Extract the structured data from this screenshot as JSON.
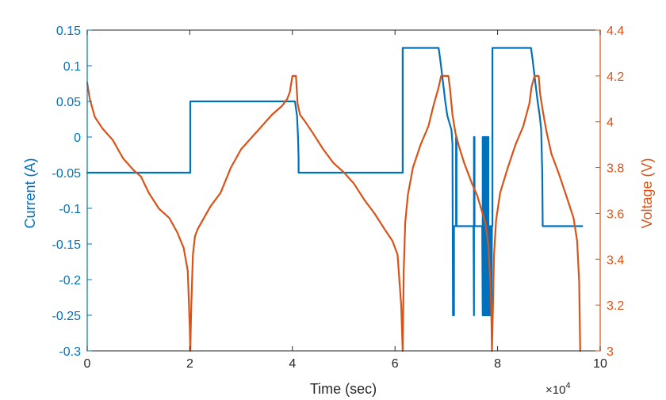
{
  "chart_data": {
    "type": "line",
    "title": "",
    "xlabel": "Time (sec)",
    "x_exponent_label": "×10",
    "x_exponent_power": "4",
    "ylabel_left": "Current (A)",
    "ylabel_right": "Voltage (V)",
    "xlim": [
      0,
      100000
    ],
    "ylim_left": [
      -0.3,
      0.15
    ],
    "ylim_right": [
      3.0,
      4.4
    ],
    "x_ticks": [
      0,
      20000,
      40000,
      60000,
      80000,
      100000
    ],
    "x_tick_labels": [
      "0",
      "2",
      "4",
      "6",
      "8",
      "10"
    ],
    "y_left_ticks": [
      0.15,
      0.1,
      0.05,
      0,
      -0.05,
      -0.1,
      -0.15,
      -0.2,
      -0.25,
      -0.3
    ],
    "y_left_tick_labels": [
      "0.15",
      "0.1",
      "0.05",
      "0",
      "-0.05",
      "-0.1",
      "-0.15",
      "-0.2",
      "-0.25",
      "-0.3"
    ],
    "y_right_ticks": [
      4.4,
      4.2,
      4.0,
      3.8,
      3.6,
      3.4,
      3.2,
      3.0
    ],
    "y_right_tick_labels": [
      "4.4",
      "4.2",
      "4",
      "3.8",
      "3.6",
      "3.4",
      "3.2",
      "3"
    ],
    "grid": false,
    "colors": {
      "current": "#0072BD",
      "voltage": "#D95319",
      "axes": "#262626"
    },
    "series": [
      {
        "axis": "left",
        "x": [
          0,
          20100,
          20100,
          40500,
          40700,
          40900,
          41100,
          41200,
          41200,
          61500,
          61500,
          68500,
          68800,
          69300,
          69800,
          70200,
          70600,
          71000,
          71200,
          71300,
          71300,
          71400,
          71400,
          71500,
          71500,
          71800,
          71900,
          71900,
          72000,
          72000,
          75300,
          75400,
          75400,
          75500,
          75500,
          77000,
          77100,
          77100,
          77200,
          77200,
          77300,
          77300,
          77400,
          77400,
          77500,
          77500,
          77600,
          77600,
          77700,
          77700,
          77800,
          77800,
          77900,
          77900,
          78000,
          78000,
          78100,
          78100,
          78200,
          78200,
          78300,
          78300,
          78400,
          78400,
          78500,
          78500,
          78600,
          78600,
          78700,
          78700,
          78800,
          78800,
          78900,
          78900,
          79000,
          79000,
          86500,
          86800,
          87300,
          87800,
          88200,
          88500,
          88700,
          88800,
          96500
        ],
        "y": [
          -0.05,
          -0.05,
          0.05,
          0.05,
          0.04,
          0.03,
          0.0,
          -0.03,
          -0.05,
          -0.05,
          0.125,
          0.125,
          0.11,
          0.08,
          0.05,
          0.03,
          0.02,
          0.01,
          -0.01,
          -0.25,
          -0.125,
          -0.125,
          -0.25,
          -0.25,
          -0.125,
          -0.125,
          -0.125,
          0.0,
          0.0,
          -0.125,
          -0.125,
          -0.25,
          0.0,
          0.0,
          -0.125,
          -0.125,
          -0.25,
          0.0,
          0.0,
          -0.25,
          -0.25,
          0.0,
          0.0,
          -0.25,
          -0.25,
          0.0,
          0.0,
          -0.25,
          -0.25,
          0.0,
          0.0,
          -0.25,
          -0.25,
          0.0,
          0.0,
          -0.25,
          -0.25,
          0.0,
          0.0,
          -0.25,
          -0.25,
          -0.125,
          -0.125,
          -0.25,
          -0.25,
          -0.125,
          -0.125,
          -0.25,
          -0.25,
          -0.125,
          -0.125,
          -0.25,
          -0.125,
          -0.125,
          -0.125,
          0.125,
          0.125,
          0.11,
          0.08,
          0.05,
          0.03,
          0.01,
          -0.05,
          -0.125,
          -0.125
        ]
      },
      {
        "axis": "right",
        "x": [
          0,
          500,
          1500,
          3000,
          5000,
          7000,
          9000,
          10500,
          12000,
          14000,
          16000,
          17500,
          18800,
          19600,
          20000,
          20100,
          20300,
          20600,
          21000,
          21500,
          22500,
          24000,
          26000,
          28000,
          30000,
          32000,
          34000,
          36000,
          38000,
          39000,
          39500,
          40000,
          40300,
          40700,
          41000,
          41500,
          42500,
          44000,
          46000,
          48000,
          50000,
          52000,
          54000,
          56000,
          58000,
          59500,
          60500,
          61200,
          61500,
          61700,
          62000,
          62500,
          63500,
          65000,
          66500,
          67500,
          68500,
          69000,
          69600,
          70400,
          70700,
          71200,
          71800,
          72500,
          73500,
          75000,
          76000,
          76800,
          77600,
          78200,
          78600,
          78800,
          78900,
          79100,
          79300,
          79700,
          80500,
          82000,
          83500,
          85000,
          86200,
          86600,
          87200,
          88000,
          88300,
          88800,
          89500,
          90500,
          92000,
          93500,
          94800,
          95500,
          95900,
          96100
        ],
        "y": [
          4.17,
          4.1,
          4.02,
          3.97,
          3.92,
          3.84,
          3.79,
          3.76,
          3.69,
          3.62,
          3.58,
          3.52,
          3.45,
          3.35,
          3.1,
          3.0,
          3.2,
          3.42,
          3.5,
          3.53,
          3.57,
          3.63,
          3.69,
          3.8,
          3.88,
          3.93,
          3.98,
          4.03,
          4.07,
          4.1,
          4.13,
          4.2,
          4.2,
          4.2,
          4.08,
          4.03,
          4.0,
          3.95,
          3.88,
          3.82,
          3.78,
          3.73,
          3.66,
          3.6,
          3.53,
          3.48,
          3.42,
          3.2,
          3.0,
          3.35,
          3.56,
          3.68,
          3.8,
          3.9,
          3.98,
          4.07,
          4.15,
          4.2,
          4.2,
          4.2,
          4.15,
          4.03,
          3.95,
          3.89,
          3.82,
          3.73,
          3.68,
          3.62,
          3.56,
          3.46,
          3.3,
          3.15,
          3.0,
          3.2,
          3.42,
          3.57,
          3.69,
          3.8,
          3.9,
          3.98,
          4.08,
          4.15,
          4.2,
          4.2,
          4.12,
          4.05,
          3.96,
          3.86,
          3.77,
          3.67,
          3.58,
          3.48,
          3.3,
          3.0
        ]
      }
    ]
  }
}
